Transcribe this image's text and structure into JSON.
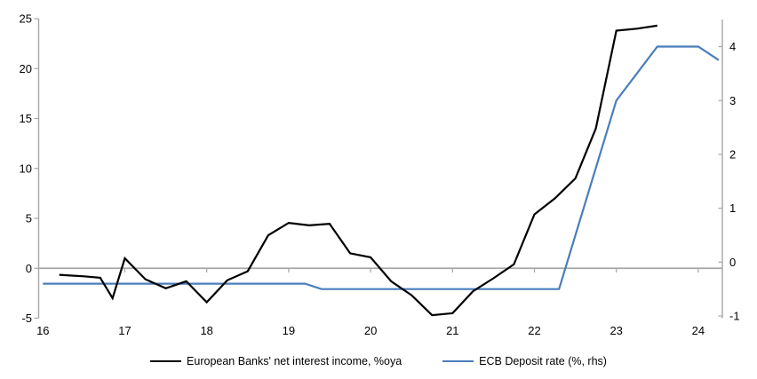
{
  "chart_data": {
    "type": "line",
    "title": "",
    "x_axis": {
      "tick_labels": [
        "16",
        "17",
        "18",
        "19",
        "20",
        "21",
        "22",
        "23",
        "24"
      ],
      "tick_values": [
        16,
        17,
        18,
        19,
        20,
        21,
        22,
        23,
        24
      ],
      "range": [
        16,
        24.3
      ]
    },
    "left_axis": {
      "tick_labels": [
        "25",
        "20",
        "15",
        "10",
        "5",
        "0",
        "-5"
      ],
      "tick_values": [
        25,
        20,
        15,
        10,
        5,
        0,
        -5
      ],
      "range": [
        -5,
        25
      ],
      "zero_line": true
    },
    "right_axis": {
      "tick_labels": [
        "4",
        "3",
        "2",
        "1",
        "0",
        "-1"
      ],
      "tick_values": [
        4,
        3,
        2,
        1,
        0,
        -1
      ],
      "range": [
        -1,
        4.5
      ]
    },
    "grid": "horizontal-zero-line-only",
    "legend_position": "bottom",
    "series": [
      {
        "name": "European Banks' net interest income, %oya",
        "axis": "left",
        "color": "#000000",
        "x": [
          16.2,
          16.5,
          16.7,
          16.85,
          17.0,
          17.25,
          17.5,
          17.75,
          18.0,
          18.25,
          18.5,
          18.75,
          19.0,
          19.25,
          19.5,
          19.75,
          20.0,
          20.25,
          20.5,
          20.75,
          21.0,
          21.25,
          21.5,
          21.75,
          22.0,
          22.25,
          22.5,
          22.75,
          23.0,
          23.25,
          23.5
        ],
        "y": [
          -0.65,
          -0.8,
          -0.95,
          -3.0,
          1.0,
          -1.1,
          -2.0,
          -1.3,
          -3.4,
          -1.2,
          -0.3,
          3.3,
          4.55,
          4.3,
          4.45,
          1.5,
          1.1,
          -1.3,
          -2.7,
          -4.7,
          -4.5,
          -2.3,
          -1.0,
          0.4,
          5.4,
          7.0,
          9.0,
          14.0,
          23.8,
          24.0,
          24.3
        ]
      },
      {
        "name": "ECB Deposit rate (%, rhs)",
        "axis": "right",
        "color": "#4a7ebb",
        "x": [
          16.0,
          19.2,
          19.4,
          22.3,
          23.0,
          23.25,
          23.5,
          24.0,
          24.25
        ],
        "y": [
          -0.4,
          -0.4,
          -0.5,
          -0.5,
          3.0,
          3.5,
          4.0,
          4.0,
          3.75
        ]
      }
    ]
  },
  "legend": {
    "items": [
      {
        "label": "European Banks' net interest income, %oya",
        "color": "#000000"
      },
      {
        "label": "ECB Deposit rate (%, rhs)",
        "color": "#4a7ebb"
      }
    ]
  },
  "colors": {
    "background": "#ffffff",
    "axis": "#a6a6a6",
    "text": "#000000",
    "nii_line": "#000000",
    "ecb_line": "#4a7ebb"
  }
}
